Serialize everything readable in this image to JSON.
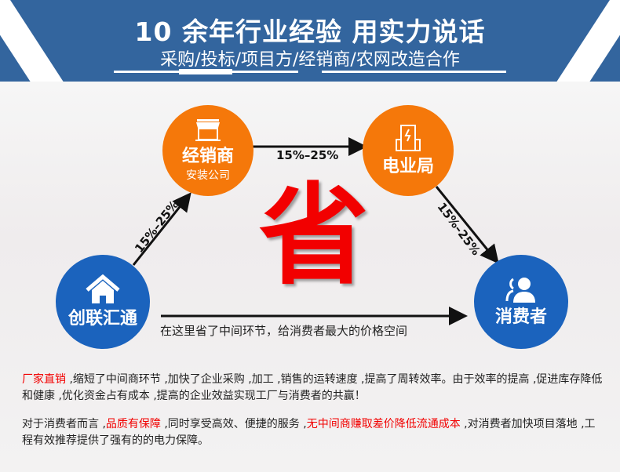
{
  "header": {
    "title": "10 余年行业经验 用实力说话",
    "subtitle": "采购/投标/项目方/经销商/农网改造合作"
  },
  "nodes": {
    "dealer": {
      "label": "经销商",
      "sub": "安装公司",
      "icon": "storefront-icon"
    },
    "utility": {
      "label": "电业局",
      "icon": "building-lightning-icon"
    },
    "company": {
      "label": "创联汇通",
      "icon": "house-icon"
    },
    "consumer": {
      "label": "消费者",
      "icon": "users-icon"
    }
  },
  "center_char": "省",
  "markups": {
    "top": "15%–25%",
    "left": "15%–25%",
    "right": "15%–25%"
  },
  "direct_note": "在这里省了中间环节，给消费者最大的价格空间",
  "paragraph1": {
    "highlight": "厂家直销",
    "text": " ,缩短了中间商环节 ,加快了企业采购 ,加工 ,销售的运转速度 ,提高了周转效率。由于效率的提高 ,促进库存降低和健康 ,优化资金占有成本 ,提高的企业效益实现工厂与消费者的共赢！"
  },
  "paragraph2": {
    "t1": "对于消费者而言 ,",
    "h1": "品质有保障",
    "t2": " ,同时享受高效、便捷的服务 ,",
    "h2": "无中间商赚取差价降低流通成本",
    "t3": " ,对消费者加快项目落地 ,工程有效推荐提供了强有的的电力保障。"
  },
  "colors": {
    "header_blue": "#33659e",
    "orange": "#f5780a",
    "blue": "#1b63bd",
    "red": "#f20000"
  }
}
